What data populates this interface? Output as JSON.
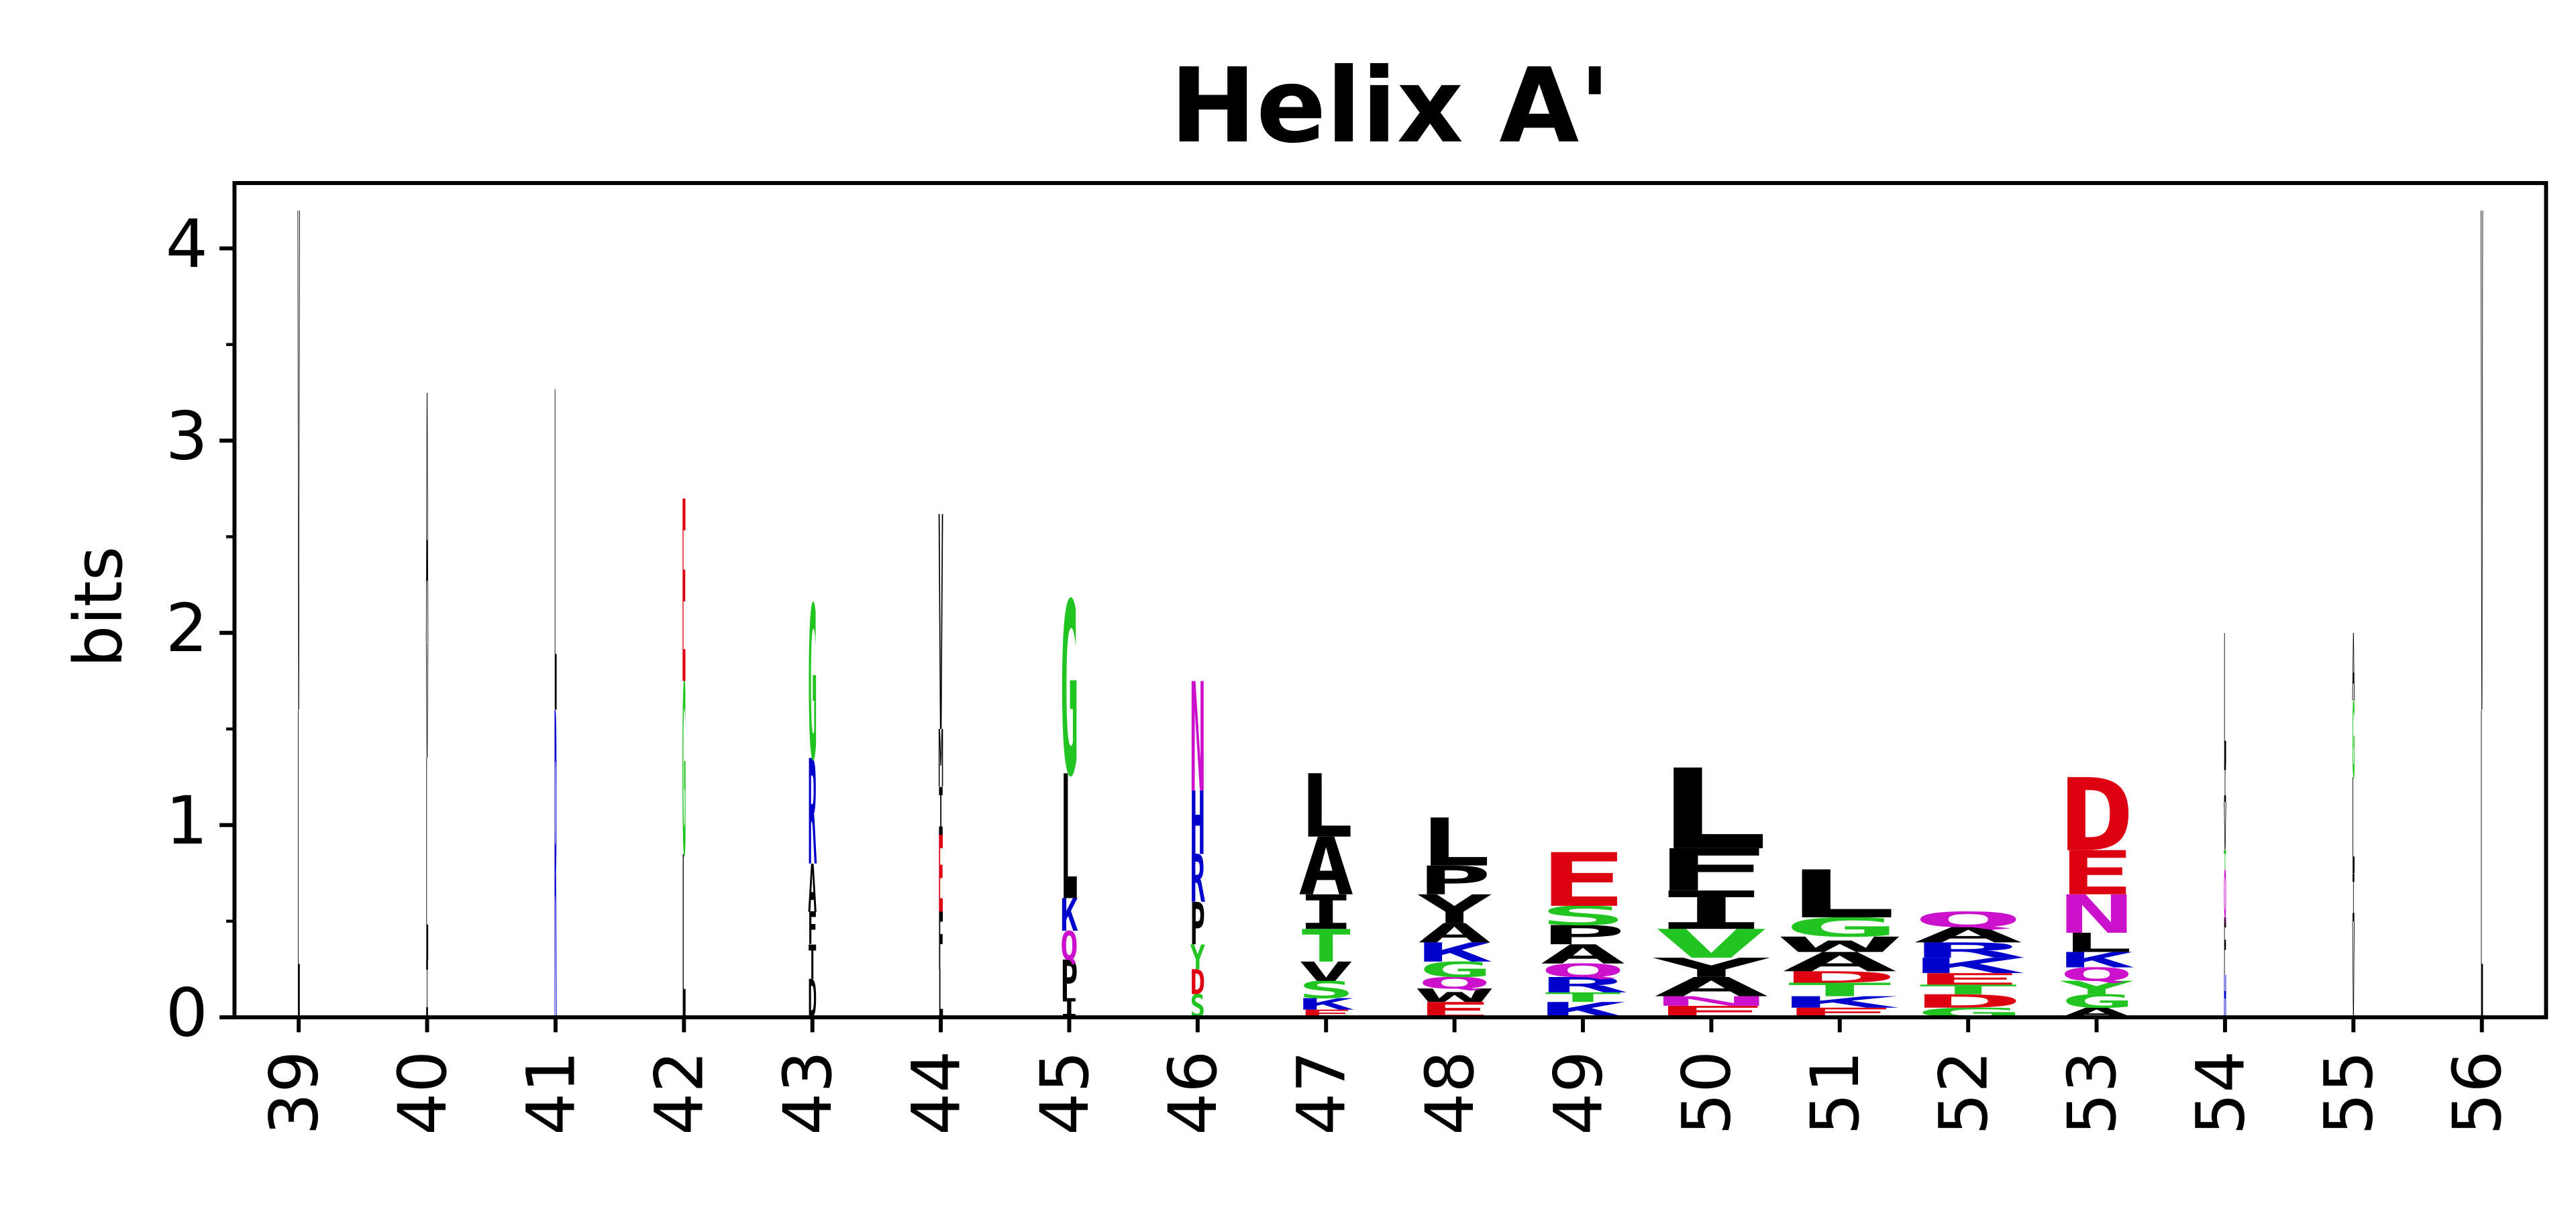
{
  "chart_data": {
    "type": "logo",
    "title": "Helix A'",
    "y_label": "bits",
    "x": [
      39,
      40,
      41,
      42,
      43,
      44,
      45,
      46,
      47,
      48,
      49,
      50,
      51,
      52,
      53,
      54,
      55,
      56
    ],
    "xlim": [
      38.5,
      56.5
    ],
    "ylim": [
      0,
      4.34
    ],
    "yticks": [
      0,
      1,
      2,
      3,
      4
    ],
    "yminor": [
      0.5,
      1.5,
      2.5,
      3.5
    ],
    "weights": [
      0.02,
      0.02,
      0.02,
      0.03,
      0.07,
      0.04,
      0.14,
      0.12,
      0.45,
      0.6,
      0.7,
      0.95,
      0.95,
      0.9,
      0.6,
      0.02,
      0.02,
      0.02
    ],
    "stacks": [
      [
        {
          "letter": "L",
          "color": "#000000",
          "value": 1.6
        },
        {
          "letter": "V",
          "color": "#000000",
          "value": 2.6
        }
      ],
      [
        {
          "letter": "I",
          "color": "#000000",
          "value": 0.3
        },
        {
          "letter": "L",
          "color": "#000000",
          "value": 1.05
        },
        {
          "letter": "V",
          "color": "#000000",
          "value": 0.6
        },
        {
          "letter": "A",
          "color": "#000000",
          "value": 1.3
        }
      ],
      [
        {
          "letter": "R",
          "color": "#0000cc",
          "value": 1.6
        },
        {
          "letter": "L",
          "color": "#000000",
          "value": 1.67
        }
      ],
      [
        {
          "letter": "L",
          "color": "#000000",
          "value": 0.85
        },
        {
          "letter": "G",
          "color": "#22c422",
          "value": 0.9
        },
        {
          "letter": "E",
          "color": "#dd0011",
          "value": 0.95
        }
      ],
      [
        {
          "letter": "D",
          "color": "#000000",
          "value": 0.2
        },
        {
          "letter": "T",
          "color": "#000000",
          "value": 0.18
        },
        {
          "letter": "F",
          "color": "#000000",
          "value": 0.17
        },
        {
          "letter": "A",
          "color": "#000000",
          "value": 0.25
        },
        {
          "letter": "R",
          "color": "#0000cc",
          "value": 0.55
        },
        {
          "letter": "G",
          "color": "#22c422",
          "value": 0.8
        }
      ],
      [
        {
          "letter": "L",
          "color": "#000000",
          "value": 0.25
        },
        {
          "letter": "F",
          "color": "#000000",
          "value": 0.3
        },
        {
          "letter": "E",
          "color": "#dd0011",
          "value": 0.4
        },
        {
          "letter": "I",
          "color": "#000000",
          "value": 0.25
        },
        {
          "letter": "M",
          "color": "#000000",
          "value": 0.3
        },
        {
          "letter": "V",
          "color": "#000000",
          "value": 1.12
        }
      ],
      [
        {
          "letter": "I",
          "color": "#000000",
          "value": 0.1
        },
        {
          "letter": "P",
          "color": "#000000",
          "value": 0.2
        },
        {
          "letter": "Q",
          "color": "#cc11cc",
          "value": 0.15
        },
        {
          "letter": "K",
          "color": "#0000cc",
          "value": 0.17
        },
        {
          "letter": "L",
          "color": "#000000",
          "value": 0.65
        },
        {
          "letter": "G",
          "color": "#22c422",
          "value": 0.9
        }
      ],
      [
        {
          "letter": "S",
          "color": "#22c422",
          "value": 0.12
        },
        {
          "letter": "D",
          "color": "#dd0011",
          "value": 0.13
        },
        {
          "letter": "Y",
          "color": "#22c422",
          "value": 0.13
        },
        {
          "letter": "P",
          "color": "#000000",
          "value": 0.22
        },
        {
          "letter": "R",
          "color": "#0000cc",
          "value": 0.25
        },
        {
          "letter": "H",
          "color": "#0000cc",
          "value": 0.33
        },
        {
          "letter": "N",
          "color": "#cc11cc",
          "value": 0.57
        }
      ],
      [
        {
          "letter": "E",
          "color": "#dd0011",
          "value": 0.04
        },
        {
          "letter": "K",
          "color": "#0000cc",
          "value": 0.06
        },
        {
          "letter": "S",
          "color": "#22c422",
          "value": 0.09
        },
        {
          "letter": "V",
          "color": "#000000",
          "value": 0.1
        },
        {
          "letter": "T",
          "color": "#22c422",
          "value": 0.17
        },
        {
          "letter": "I",
          "color": "#000000",
          "value": 0.18
        },
        {
          "letter": "A",
          "color": "#000000",
          "value": 0.3
        },
        {
          "letter": "L",
          "color": "#000000",
          "value": 0.33
        }
      ],
      [
        {
          "letter": "E",
          "color": "#dd0011",
          "value": 0.08
        },
        {
          "letter": "W",
          "color": "#000000",
          "value": 0.07
        },
        {
          "letter": "Q",
          "color": "#cc11cc",
          "value": 0.06
        },
        {
          "letter": "G",
          "color": "#22c422",
          "value": 0.08
        },
        {
          "letter": "K",
          "color": "#0000cc",
          "value": 0.1
        },
        {
          "letter": "A",
          "color": "#000000",
          "value": 0.1
        },
        {
          "letter": "Y",
          "color": "#000000",
          "value": 0.15
        },
        {
          "letter": "P",
          "color": "#000000",
          "value": 0.15
        },
        {
          "letter": "L",
          "color": "#000000",
          "value": 0.25
        }
      ],
      [
        {
          "letter": "K",
          "color": "#0000cc",
          "value": 0.08
        },
        {
          "letter": "T",
          "color": "#22c422",
          "value": 0.05
        },
        {
          "letter": "R",
          "color": "#0000cc",
          "value": 0.08
        },
        {
          "letter": "Q",
          "color": "#cc11cc",
          "value": 0.07
        },
        {
          "letter": "A",
          "color": "#000000",
          "value": 0.1
        },
        {
          "letter": "P",
          "color": "#000000",
          "value": 0.1
        },
        {
          "letter": "S",
          "color": "#22c422",
          "value": 0.1
        },
        {
          "letter": "E",
          "color": "#dd0011",
          "value": 0.28
        }
      ],
      [
        {
          "letter": "E",
          "color": "#dd0011",
          "value": 0.06
        },
        {
          "letter": "N",
          "color": "#cc11cc",
          "value": 0.05
        },
        {
          "letter": "A",
          "color": "#000000",
          "value": 0.1
        },
        {
          "letter": "Y",
          "color": "#000000",
          "value": 0.1
        },
        {
          "letter": "V",
          "color": "#22c422",
          "value": 0.15
        },
        {
          "letter": "I",
          "color": "#000000",
          "value": 0.2
        },
        {
          "letter": "F",
          "color": "#000000",
          "value": 0.22
        },
        {
          "letter": "L",
          "color": "#000000",
          "value": 0.42
        }
      ],
      [
        {
          "letter": "E",
          "color": "#dd0011",
          "value": 0.05
        },
        {
          "letter": "K",
          "color": "#0000cc",
          "value": 0.06
        },
        {
          "letter": "T",
          "color": "#22c422",
          "value": 0.07
        },
        {
          "letter": "D",
          "color": "#dd0011",
          "value": 0.06
        },
        {
          "letter": "A",
          "color": "#000000",
          "value": 0.1
        },
        {
          "letter": "W",
          "color": "#000000",
          "value": 0.08
        },
        {
          "letter": "G",
          "color": "#22c422",
          "value": 0.1
        },
        {
          "letter": "L",
          "color": "#000000",
          "value": 0.25
        }
      ],
      [
        {
          "letter": "G",
          "color": "#22c422",
          "value": 0.05
        },
        {
          "letter": "D",
          "color": "#dd0011",
          "value": 0.07
        },
        {
          "letter": "T",
          "color": "#22c422",
          "value": 0.05
        },
        {
          "letter": "E",
          "color": "#dd0011",
          "value": 0.06
        },
        {
          "letter": "K",
          "color": "#0000cc",
          "value": 0.08
        },
        {
          "letter": "R",
          "color": "#0000cc",
          "value": 0.08
        },
        {
          "letter": "A",
          "color": "#000000",
          "value": 0.08
        },
        {
          "letter": "Q",
          "color": "#cc11cc",
          "value": 0.08
        }
      ],
      [
        {
          "letter": "A",
          "color": "#000000",
          "value": 0.05
        },
        {
          "letter": "G",
          "color": "#22c422",
          "value": 0.07
        },
        {
          "letter": "Y",
          "color": "#22c422",
          "value": 0.07
        },
        {
          "letter": "Q",
          "color": "#cc11cc",
          "value": 0.07
        },
        {
          "letter": "K",
          "color": "#0000cc",
          "value": 0.08
        },
        {
          "letter": "L",
          "color": "#000000",
          "value": 0.1
        },
        {
          "letter": "N",
          "color": "#cc11cc",
          "value": 0.2
        },
        {
          "letter": "E",
          "color": "#dd0011",
          "value": 0.23
        },
        {
          "letter": "D",
          "color": "#dd0011",
          "value": 0.38
        }
      ],
      [
        {
          "letter": "H",
          "color": "#0000cc",
          "value": 0.22
        },
        {
          "letter": "F",
          "color": "#000000",
          "value": 0.3
        },
        {
          "letter": "Q",
          "color": "#cc11cc",
          "value": 0.25
        },
        {
          "letter": "T",
          "color": "#22c422",
          "value": 0.1
        },
        {
          "letter": "V",
          "color": "#000000",
          "value": 0.25
        },
        {
          "letter": "I",
          "color": "#000000",
          "value": 0.2
        },
        {
          "letter": "L",
          "color": "#000000",
          "value": 0.68
        }
      ],
      [
        {
          "letter": "V",
          "color": "#000000",
          "value": 0.5
        },
        {
          "letter": "I",
          "color": "#000000",
          "value": 0.25
        },
        {
          "letter": "L",
          "color": "#000000",
          "value": 0.5
        },
        {
          "letter": "G",
          "color": "#22c422",
          "value": 0.4
        },
        {
          "letter": "A",
          "color": "#000000",
          "value": 0.35
        }
      ],
      [
        {
          "letter": "L",
          "color": "#000000",
          "value": 1.6
        },
        {
          "letter": "V",
          "color": "#000000",
          "value": 2.6
        }
      ]
    ]
  }
}
